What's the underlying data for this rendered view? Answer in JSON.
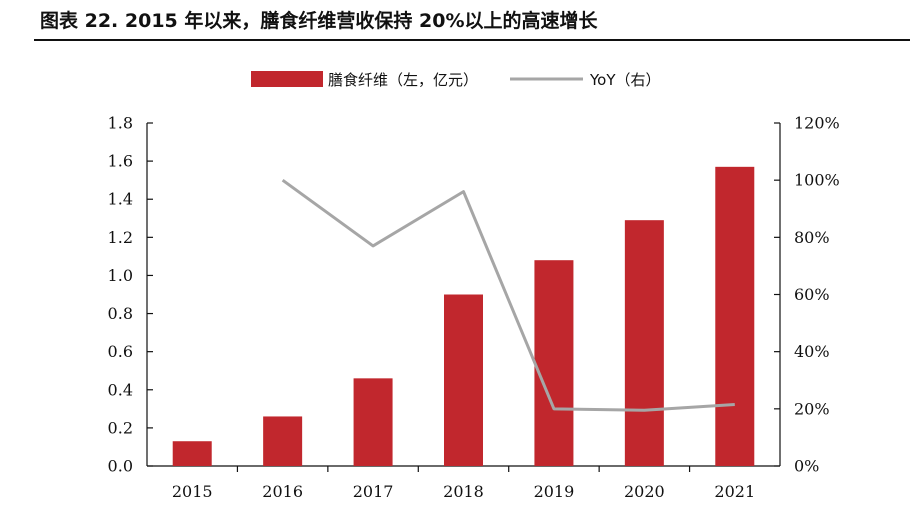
{
  "title": "图表 22. 2015 年以来，膳食纤维营收保持 20%以上的高速增长",
  "colors": {
    "bar": "#C1272D",
    "line": "#A6A6A6",
    "axis": "#111111"
  },
  "chart_data": {
    "type": "bar",
    "categories": [
      "2015",
      "2016",
      "2017",
      "2018",
      "2019",
      "2020",
      "2021"
    ],
    "series": [
      {
        "name": "膳食纤维（左，亿元）",
        "type": "bar",
        "axis": "left",
        "values": [
          0.13,
          0.26,
          0.46,
          0.9,
          1.08,
          1.29,
          1.57
        ]
      },
      {
        "name": "YoY（右）",
        "type": "line",
        "axis": "right",
        "values": [
          null,
          100,
          77,
          96,
          20,
          19.5,
          21.5
        ]
      }
    ],
    "y_left": {
      "lim": [
        0,
        1.8
      ],
      "ticks": [
        "0.0",
        "0.2",
        "0.4",
        "0.6",
        "0.8",
        "1.0",
        "1.2",
        "1.4",
        "1.6",
        "1.8"
      ]
    },
    "y_right": {
      "lim": [
        0,
        120
      ],
      "ticks": [
        "0%",
        "20%",
        "40%",
        "60%",
        "80%",
        "100%",
        "120%"
      ]
    },
    "grid": false,
    "legend": "top"
  }
}
